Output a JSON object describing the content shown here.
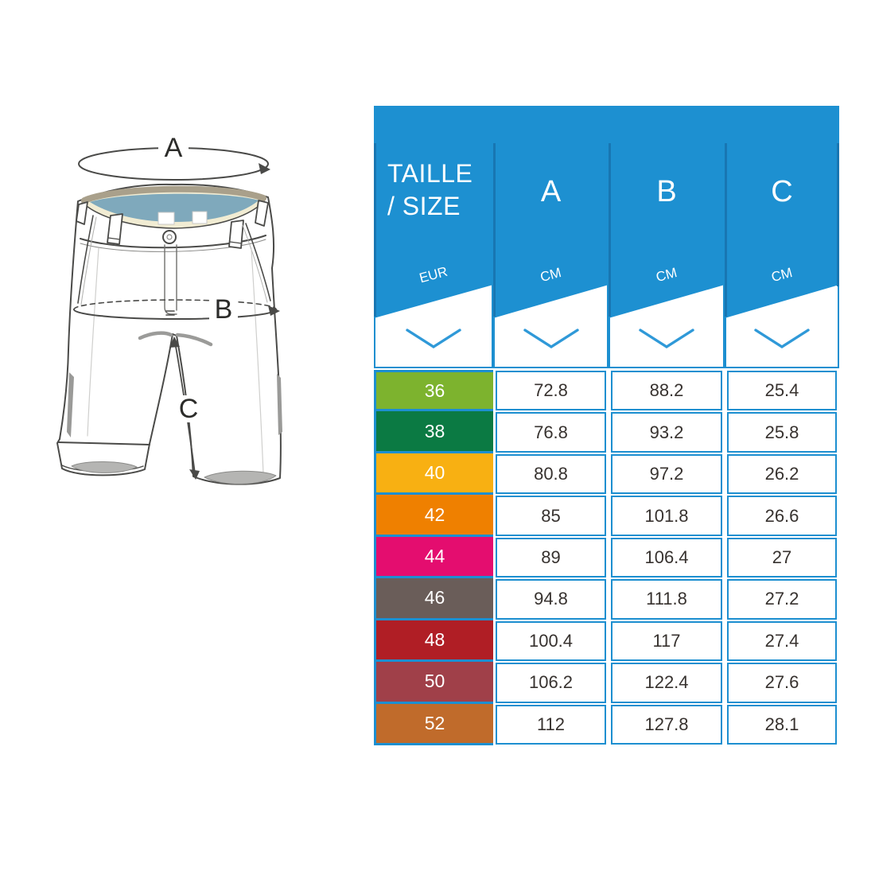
{
  "chart_data": {
    "type": "table",
    "title": "TAILLE / SIZE",
    "columns": [
      {
        "label": "TAILLE / SIZE",
        "unit": "EUR"
      },
      {
        "label": "A",
        "unit": "CM"
      },
      {
        "label": "B",
        "unit": "CM"
      },
      {
        "label": "C",
        "unit": "CM"
      }
    ],
    "rows": [
      {
        "size": "36",
        "a": "72.8",
        "b": "88.2",
        "c": "25.4",
        "color": "#7db32e"
      },
      {
        "size": "38",
        "a": "76.8",
        "b": "93.2",
        "c": "25.8",
        "color": "#0b7a43"
      },
      {
        "size": "40",
        "a": "80.8",
        "b": "97.2",
        "c": "26.2",
        "color": "#f8b012"
      },
      {
        "size": "42",
        "a": "85",
        "b": "101.8",
        "c": "26.6",
        "color": "#ef8000"
      },
      {
        "size": "44",
        "a": "89",
        "b": "106.4",
        "c": "27",
        "color": "#e40d6f"
      },
      {
        "size": "46",
        "a": "94.8",
        "b": "111.8",
        "c": "27.2",
        "color": "#6a5d59"
      },
      {
        "size": "48",
        "a": "100.4",
        "b": "117",
        "c": "27.4",
        "color": "#b01e25"
      },
      {
        "size": "50",
        "a": "106.2",
        "b": "122.4",
        "c": "27.6",
        "color": "#a04049"
      },
      {
        "size": "52",
        "a": "112",
        "b": "127.8",
        "c": "28.1",
        "color": "#c06b2b"
      }
    ]
  },
  "header": {
    "title_line1": "TAILLE",
    "title_line2": "/ SIZE",
    "col_a": "A",
    "col_b": "B",
    "col_c": "C",
    "unit_size": "EUR",
    "unit_a": "CM",
    "unit_b": "CM",
    "unit_c": "CM"
  },
  "diagram": {
    "label_a": "A",
    "label_b": "B",
    "label_c": "C"
  },
  "colors": {
    "header_blue": "#1d90d1",
    "grid_blue": "#1d8fd0",
    "separator_blue": "#1876b2",
    "chevron_blue": "#2f99d8",
    "value_text": "#37322f"
  }
}
